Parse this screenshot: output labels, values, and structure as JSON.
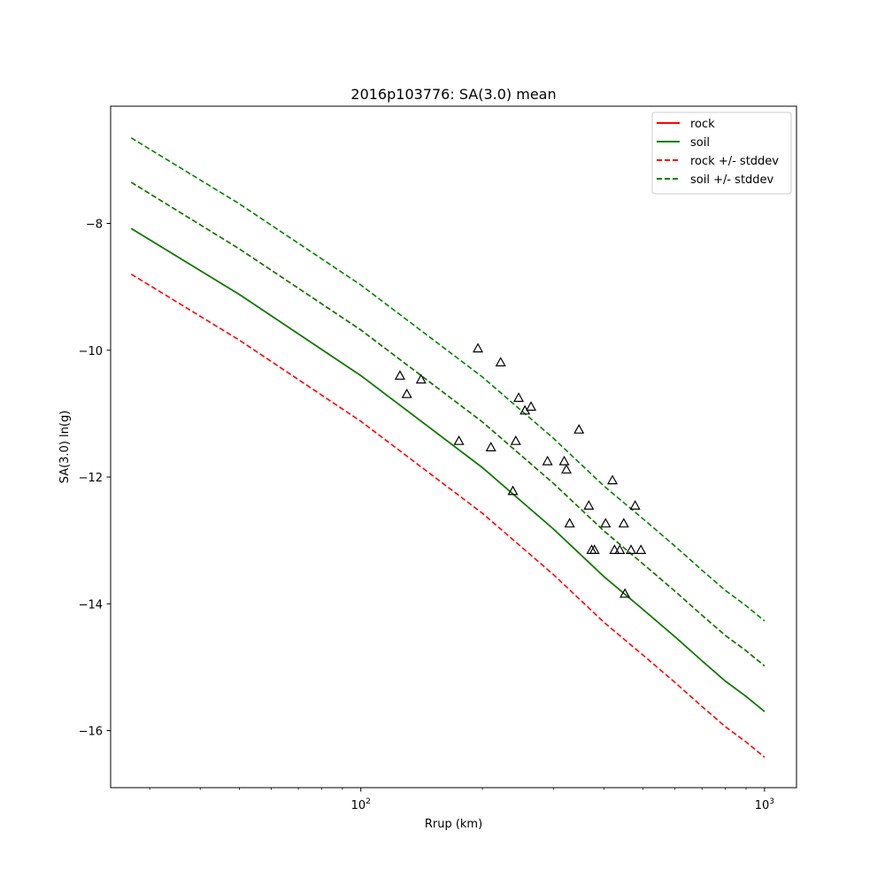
{
  "chart_data": {
    "type": "line",
    "title": "2016p103776: SA(3.0) mean",
    "xlabel": "Rrup (km)",
    "ylabel": "SA(3.0) ln(g)",
    "x_scale": "log",
    "xlim": [
      24,
      1200
    ],
    "ylim": [
      -16.9,
      -6.15
    ],
    "x_ticks": [
      {
        "value": 100,
        "base": "10",
        "exp": "2"
      },
      {
        "value": 1000,
        "base": "10",
        "exp": "3"
      }
    ],
    "y_ticks": [
      {
        "value": -8,
        "label": "−8"
      },
      {
        "value": -10,
        "label": "−10"
      },
      {
        "value": -12,
        "label": "−12"
      },
      {
        "value": -14,
        "label": "−14"
      },
      {
        "value": -16,
        "label": "−16"
      }
    ],
    "grid": false,
    "legend_position": "top-right",
    "series": [
      {
        "name": "rock",
        "color": "#ff0000",
        "style": "solid",
        "x": [
          27,
          50,
          100,
          200,
          300,
          400,
          500,
          600,
          700,
          800,
          900,
          1000
        ],
        "y": [
          -8.08,
          -9.12,
          -10.4,
          -11.85,
          -12.82,
          -13.57,
          -14.09,
          -14.52,
          -14.9,
          -15.22,
          -15.46,
          -15.7
        ]
      },
      {
        "name": "soil",
        "color": "#008000",
        "style": "solid",
        "x": [
          27,
          50,
          100,
          200,
          300,
          400,
          500,
          600,
          700,
          800,
          900,
          1000
        ],
        "y": [
          -8.08,
          -9.12,
          -10.4,
          -11.85,
          -12.82,
          -13.57,
          -14.09,
          -14.52,
          -14.9,
          -15.22,
          -15.46,
          -15.7
        ]
      },
      {
        "name": "rock +/- stddev",
        "color": "#ff0000",
        "style": "dashed",
        "x": [
          27,
          50,
          100,
          200,
          300,
          400,
          500,
          600,
          700,
          800,
          900,
          1000
        ],
        "y": [
          -7.35,
          -8.4,
          -9.68,
          -11.13,
          -12.1,
          -12.85,
          -13.37,
          -13.8,
          -14.18,
          -14.5,
          -14.74,
          -14.98
        ]
      },
      {
        "name": "",
        "color": "#ff0000",
        "style": "dashed",
        "x": [
          27,
          50,
          100,
          200,
          300,
          400,
          500,
          600,
          700,
          800,
          900,
          1000
        ],
        "y": [
          -8.8,
          -9.84,
          -11.12,
          -12.57,
          -13.54,
          -14.29,
          -14.81,
          -15.24,
          -15.62,
          -15.94,
          -16.18,
          -16.42
        ]
      },
      {
        "name": "soil +/- stddev",
        "color": "#008000",
        "style": "dashed",
        "x": [
          27,
          50,
          100,
          200,
          300,
          400,
          500,
          600,
          700,
          800,
          900,
          1000
        ],
        "y": [
          -6.65,
          -7.69,
          -8.97,
          -10.42,
          -11.39,
          -12.14,
          -12.66,
          -13.09,
          -13.47,
          -13.79,
          -14.03,
          -14.27
        ]
      },
      {
        "name": "",
        "color": "#008000",
        "style": "dashed",
        "x": [
          27,
          50,
          100,
          200,
          300,
          400,
          500,
          600,
          700,
          800,
          900,
          1000
        ],
        "y": [
          -7.35,
          -8.4,
          -9.68,
          -11.13,
          -12.1,
          -12.85,
          -13.37,
          -13.8,
          -14.18,
          -14.5,
          -14.74,
          -14.98
        ]
      },
      {
        "name": "",
        "color": "#008000",
        "style": "dashed",
        "x": [
          27,
          50,
          100,
          200,
          300,
          400,
          500,
          600,
          700,
          800,
          900,
          1000
        ],
        "y": [
          -8.08,
          -9.12,
          -10.4,
          -11.85,
          -12.82,
          -13.57,
          -14.09,
          -14.52,
          -14.9,
          -15.22,
          -15.46,
          -15.7
        ]
      }
    ],
    "legend": [
      {
        "name": "rock",
        "color": "#ff0000",
        "style": "solid"
      },
      {
        "name": "soil",
        "color": "#008000",
        "style": "solid"
      },
      {
        "name": "rock +/- stddev",
        "color": "#ff0000",
        "style": "dashed"
      },
      {
        "name": "soil +/- stddev",
        "color": "#008000",
        "style": "dashed"
      }
    ],
    "observations": {
      "marker": "triangle",
      "color": "#000000",
      "points": [
        {
          "x": 125,
          "y": -10.4
        },
        {
          "x": 130,
          "y": -10.69
        },
        {
          "x": 141,
          "y": -10.46
        },
        {
          "x": 175,
          "y": -11.43
        },
        {
          "x": 195,
          "y": -9.97
        },
        {
          "x": 210,
          "y": -11.53
        },
        {
          "x": 222,
          "y": -10.19
        },
        {
          "x": 238,
          "y": -12.22
        },
        {
          "x": 242,
          "y": -11.43
        },
        {
          "x": 246,
          "y": -10.75
        },
        {
          "x": 255,
          "y": -10.95
        },
        {
          "x": 264,
          "y": -10.89
        },
        {
          "x": 290,
          "y": -11.75
        },
        {
          "x": 319,
          "y": -11.75
        },
        {
          "x": 323,
          "y": -11.88
        },
        {
          "x": 329,
          "y": -12.73
        },
        {
          "x": 347,
          "y": -11.25
        },
        {
          "x": 367,
          "y": -12.45
        },
        {
          "x": 373,
          "y": -13.15
        },
        {
          "x": 379,
          "y": -13.15
        },
        {
          "x": 404,
          "y": -12.73
        },
        {
          "x": 420,
          "y": -12.05
        },
        {
          "x": 425,
          "y": -13.15
        },
        {
          "x": 438,
          "y": -13.15
        },
        {
          "x": 448,
          "y": -12.73
        },
        {
          "x": 451,
          "y": -13.84
        },
        {
          "x": 467,
          "y": -13.15
        },
        {
          "x": 478,
          "y": -12.45
        },
        {
          "x": 494,
          "y": -13.15
        }
      ]
    }
  }
}
